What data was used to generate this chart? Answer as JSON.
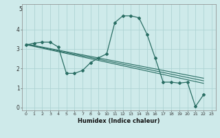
{
  "xlabel": "Humidex (Indice chaleur)",
  "background_color": "#ceeaea",
  "grid_color": "#aed4d4",
  "line_color": "#2a6e64",
  "x_data": [
    0,
    1,
    2,
    3,
    4,
    5,
    6,
    7,
    8,
    9,
    10,
    11,
    12,
    13,
    14,
    15,
    16,
    17,
    18,
    19,
    20,
    21,
    22,
    23
  ],
  "y_curve": [
    3.2,
    3.3,
    3.35,
    3.35,
    3.1,
    1.75,
    1.75,
    1.9,
    2.3,
    2.55,
    2.75,
    4.35,
    4.7,
    4.7,
    4.6,
    3.75,
    2.55,
    1.3,
    1.3,
    1.25,
    1.3,
    0.05,
    0.65,
    null
  ],
  "y_line1": [
    3.22,
    3.13,
    3.04,
    2.95,
    2.86,
    2.77,
    2.68,
    2.59,
    2.5,
    2.41,
    2.32,
    2.23,
    2.14,
    2.05,
    1.96,
    1.87,
    1.78,
    1.69,
    1.6,
    1.51,
    1.42,
    1.33,
    1.24,
    null
  ],
  "y_line2": [
    3.24,
    3.155,
    3.07,
    2.985,
    2.9,
    2.815,
    2.73,
    2.645,
    2.56,
    2.475,
    2.39,
    2.305,
    2.22,
    2.135,
    2.05,
    1.965,
    1.88,
    1.795,
    1.71,
    1.625,
    1.54,
    1.455,
    1.37,
    null
  ],
  "y_line3": [
    3.26,
    3.18,
    3.1,
    3.02,
    2.94,
    2.86,
    2.78,
    2.7,
    2.62,
    2.54,
    2.46,
    2.38,
    2.3,
    2.22,
    2.14,
    2.06,
    1.98,
    1.9,
    1.82,
    1.74,
    1.66,
    1.58,
    1.5,
    null
  ],
  "ylim": [
    -0.15,
    5.3
  ],
  "xlim": [
    -0.5,
    23.5
  ],
  "yticks": [
    0,
    1,
    2,
    3,
    4
  ],
  "xticks": [
    0,
    1,
    2,
    3,
    4,
    5,
    6,
    7,
    8,
    9,
    10,
    11,
    12,
    13,
    14,
    15,
    16,
    17,
    18,
    19,
    20,
    21,
    22,
    23
  ],
  "ytop_label": "5"
}
